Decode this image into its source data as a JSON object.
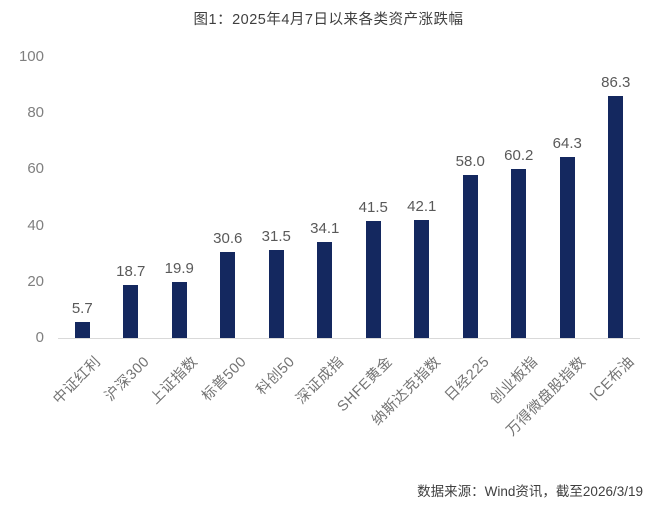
{
  "title": "图1：2025年4月7日以来各类资产涨跌幅",
  "source_note": "数据来源：Wind资讯，截至2026/3/19",
  "colors": {
    "bar": "#14285f",
    "axis_line": "#d9d9d9",
    "title_text": "#3f3f3f",
    "tick_text": "#7f7f7f",
    "value_text": "#595959",
    "category_text": "#737373",
    "source_text": "#404040",
    "background": "#ffffff"
  },
  "chart_data": {
    "type": "bar",
    "title": "图1：2025年4月7日以来各类资产涨跌幅",
    "categories": [
      "中证红利",
      "沪深300",
      "上证指数",
      "标普500",
      "科创50",
      "深证成指",
      "SHFE黄金",
      "纳斯达克指数",
      "日经225",
      "创业板指",
      "万得微盘股指数",
      "ICE布油"
    ],
    "values": [
      5.7,
      18.7,
      19.9,
      30.6,
      31.5,
      34.1,
      41.5,
      42.1,
      58.0,
      60.2,
      64.3,
      86.3
    ],
    "value_labels": [
      "5.7",
      "18.7",
      "19.9",
      "30.6",
      "31.5",
      "34.1",
      "41.5",
      "42.1",
      "58.0",
      "60.2",
      "64.3",
      "86.3"
    ],
    "xlabel": "",
    "ylabel": "",
    "ylim": [
      0,
      100
    ],
    "yticks": [
      0,
      20,
      40,
      60,
      80,
      100
    ],
    "grid": false,
    "legend": false,
    "bar_color": "#14285f",
    "annotation": "数据来源：Wind资讯，截至2026/3/19"
  }
}
